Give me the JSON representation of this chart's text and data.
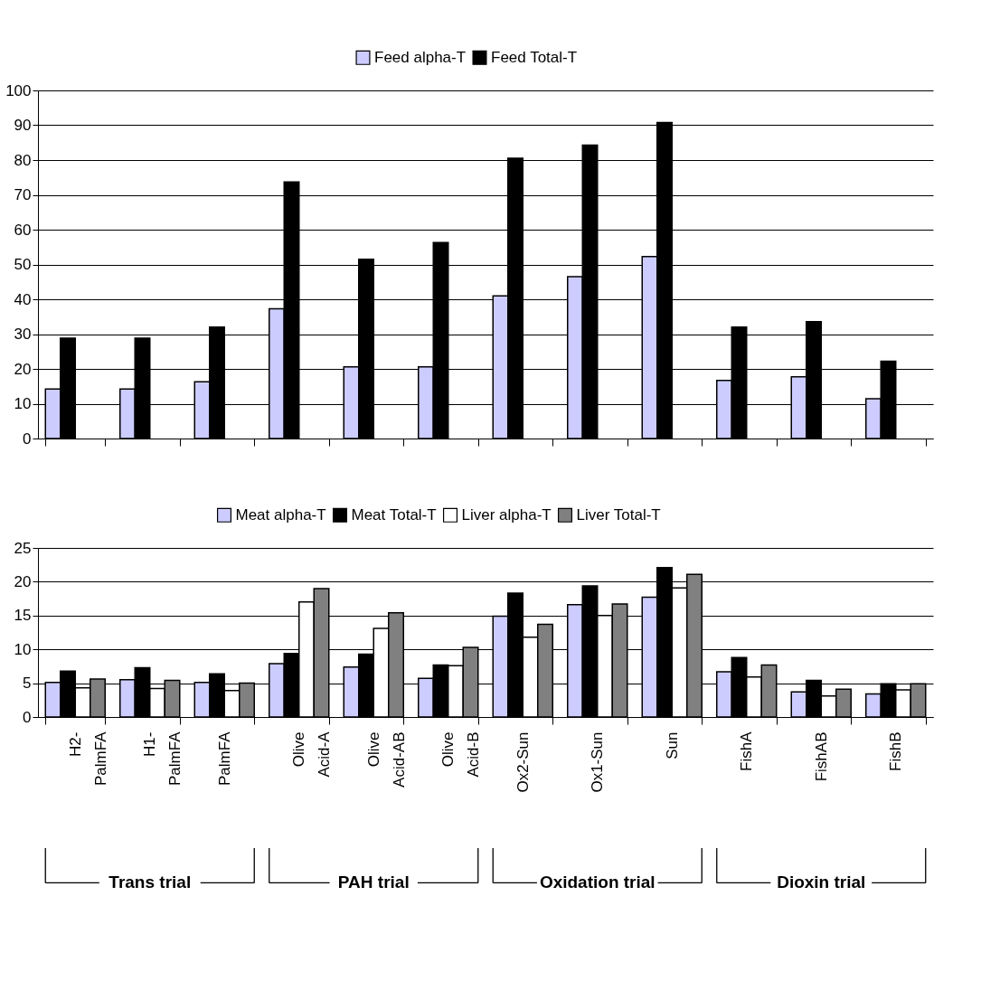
{
  "chart_data": [
    {
      "type": "bar",
      "categories": [
        null,
        null,
        null,
        null,
        null,
        null,
        null,
        null,
        null,
        null,
        null,
        null
      ],
      "ylim": [
        0,
        100
      ],
      "yticks": [
        0,
        10,
        20,
        30,
        40,
        50,
        60,
        70,
        80,
        90,
        100
      ],
      "grid": "y",
      "legend": "top",
      "series": [
        {
          "name": "Feed alpha-T",
          "color": "#ccccff",
          "values": [
            14.2,
            14.2,
            16.3,
            37.3,
            20.6,
            20.6,
            41,
            46.5,
            52.3,
            16.7,
            17.7,
            11.4
          ]
        },
        {
          "name": "Feed Total-T",
          "color": "#000000",
          "values": [
            28.8,
            28.8,
            32,
            73.7,
            51.5,
            56.3,
            80.5,
            84.3,
            90.8,
            32,
            33.6,
            22.2
          ]
        }
      ]
    },
    {
      "type": "bar",
      "categories": [
        "H2- PalmFA",
        "H1- PalmFA",
        "PalmFA",
        "Olive Acid-A",
        "Olive Acid-AB",
        "Olive Acid-B",
        "Ox2-Sun",
        "Ox1-Sun",
        "Sun",
        "FishA",
        "FishAB",
        "FishB"
      ],
      "ylim": [
        0,
        25
      ],
      "yticks": [
        0,
        5,
        10,
        15,
        20,
        25
      ],
      "grid": "y",
      "legend": "top",
      "annotations": [
        "Trans  trial",
        "PAH  trial",
        "Oxidation trial",
        "Dioxin trial"
      ],
      "series": [
        {
          "name": "Meat alpha-T",
          "color": "#ccccff",
          "values": [
            5.1,
            5.5,
            5.1,
            7.9,
            7.4,
            5.7,
            14.9,
            16.6,
            17.7,
            6.7,
            3.7,
            3.4
          ]
        },
        {
          "name": "Meat Total-T",
          "color": "#000000",
          "values": [
            6.8,
            7.3,
            6.4,
            9.4,
            9.3,
            7.7,
            18.3,
            19.4,
            22.1,
            8.8,
            5.4,
            4.9
          ]
        },
        {
          "name": "Liver alpha-T",
          "color": "#ffffff",
          "values": [
            4.3,
            4.2,
            3.9,
            17.0,
            13.1,
            7.6,
            11.8,
            15.0,
            19.1,
            5.9,
            3.1,
            4.0
          ]
        },
        {
          "name": "Liver Total-T",
          "color": "#808080",
          "values": [
            5.6,
            5.4,
            5.0,
            19.0,
            15.4,
            10.3,
            13.7,
            16.7,
            21.1,
            7.7,
            4.1,
            4.9
          ]
        }
      ]
    }
  ]
}
